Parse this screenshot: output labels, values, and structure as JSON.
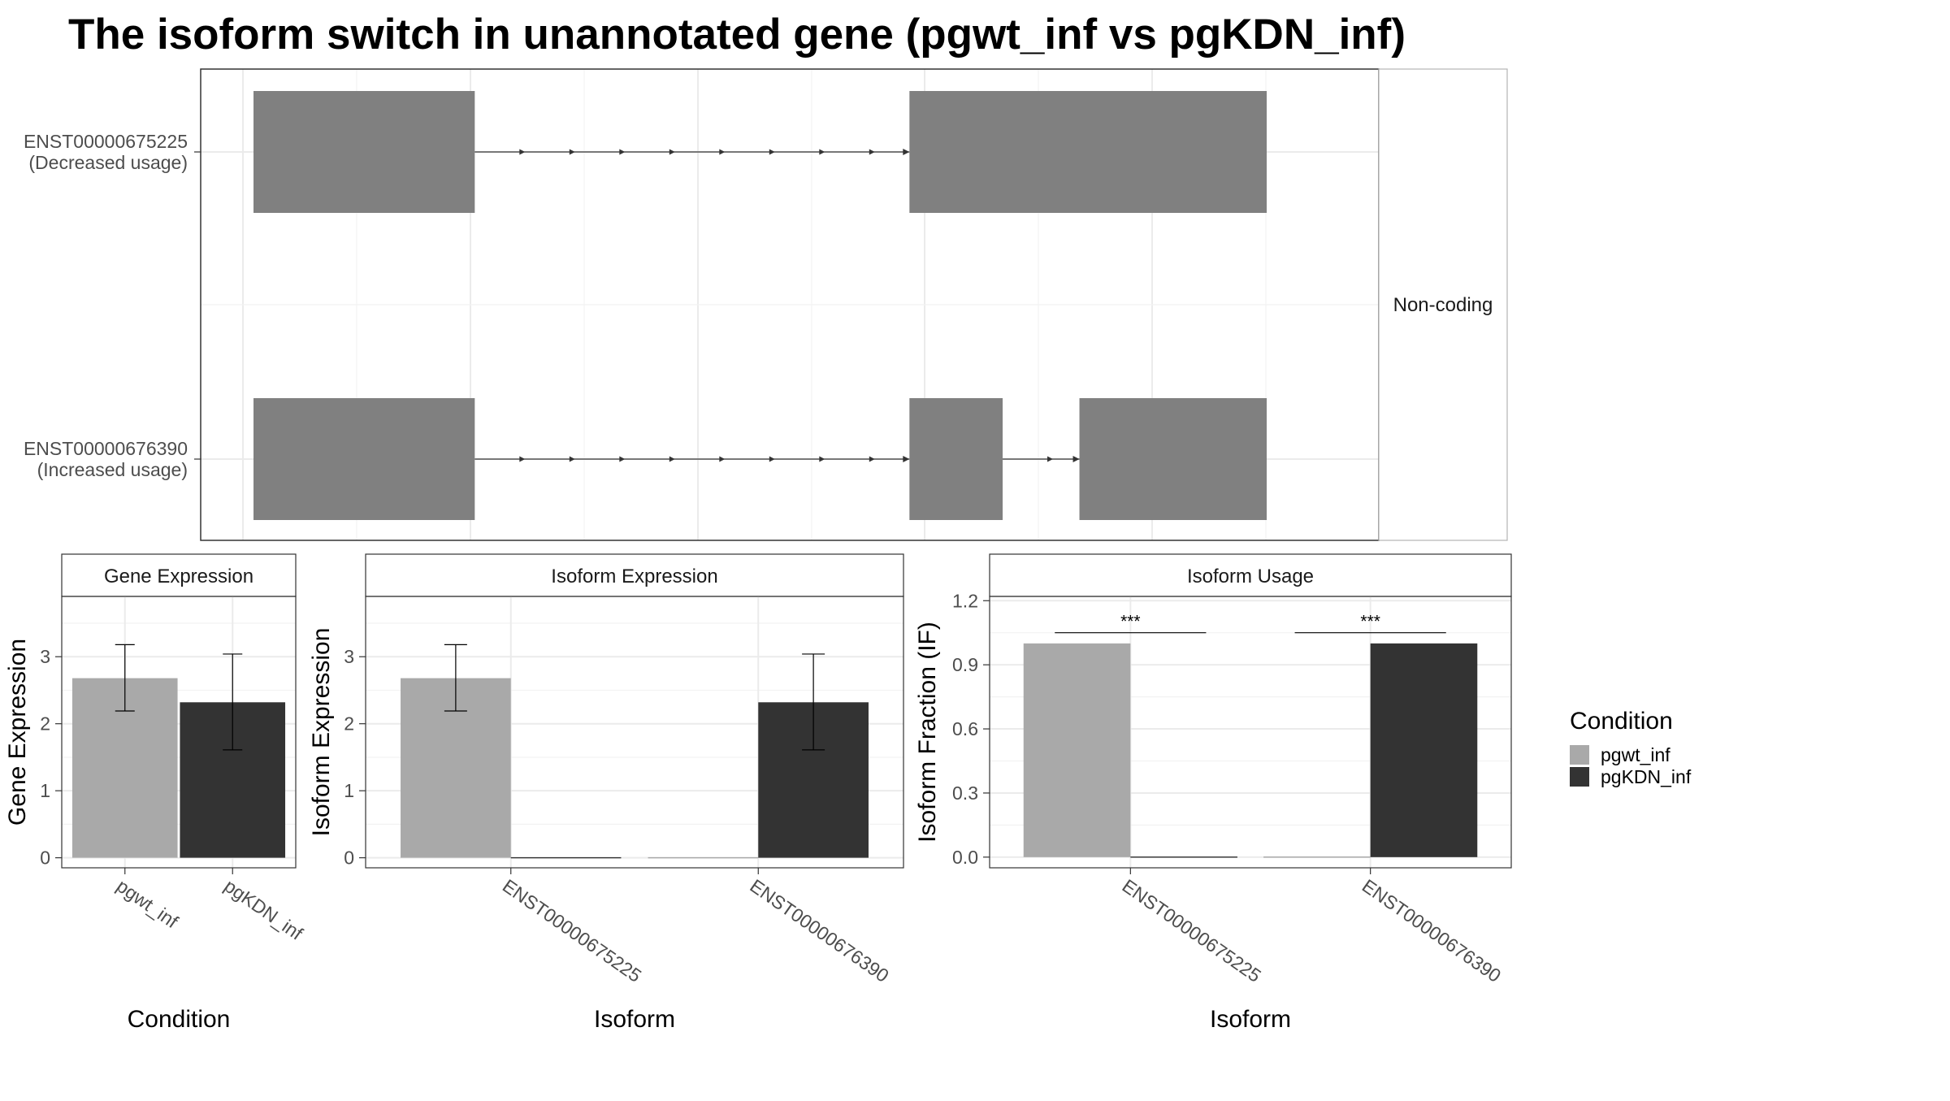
{
  "title": "The isoform switch in unannotated gene (pgwt_inf vs pgKDN_inf)",
  "colors": {
    "pgwt_inf": "#a9a9a9",
    "pgKDN_inf": "#333333",
    "exon": "#808080",
    "grid": "#ebebeb",
    "strip_bg": "#ffffff"
  },
  "chart_data": [
    {
      "type": "transcript-structure",
      "facet_label": "Non-coding",
      "isoforms": [
        {
          "id": "ENST00000675225",
          "label_line1": "ENST00000675225",
          "label_line2": "(Decreased usage)",
          "exons": [
            [
              0.0,
              0.2063
            ],
            [
              0.6116,
              0.9447
            ]
          ]
        },
        {
          "id": "ENST00000676390",
          "label_line1": "ENST00000676390",
          "label_line2": "(Increased usage)",
          "exons": [
            [
              0.0,
              0.2063
            ],
            [
              0.6116,
              0.6985
            ],
            [
              0.7701,
              0.9447
            ]
          ]
        }
      ]
    },
    {
      "type": "bar",
      "title": "Gene Expression",
      "xlabel": "Condition",
      "ylabel": "Gene Expression",
      "categories": [
        "pgwt_inf",
        "pgKDN_inf"
      ],
      "values": [
        2.68,
        2.32
      ],
      "error": [
        [
          2.19,
          3.18
        ],
        [
          1.61,
          3.04
        ]
      ],
      "ylim": [
        -0.15,
        3.9
      ],
      "yticks": [
        0,
        1,
        2,
        3
      ]
    },
    {
      "type": "bar",
      "title": "Isoform Expression",
      "xlabel": "Isoform",
      "ylabel": "Isoform Expression",
      "categories": [
        "ENST00000675225",
        "ENST00000676390"
      ],
      "series": [
        {
          "name": "pgwt_inf",
          "values": [
            2.68,
            0.0
          ],
          "error": [
            [
              2.19,
              3.18
            ],
            null
          ]
        },
        {
          "name": "pgKDN_inf",
          "values": [
            0.0,
            2.32
          ],
          "error": [
            null,
            [
              1.61,
              3.04
            ]
          ]
        }
      ],
      "ylim": [
        -0.15,
        3.9
      ],
      "yticks": [
        0,
        1,
        2,
        3
      ]
    },
    {
      "type": "bar",
      "title": "Isoform Usage",
      "xlabel": "Isoform",
      "ylabel": "Isoform Fraction (IF)",
      "categories": [
        "ENST00000675225",
        "ENST00000676390"
      ],
      "series": [
        {
          "name": "pgwt_inf",
          "values": [
            1.0,
            0.0
          ]
        },
        {
          "name": "pgKDN_inf",
          "values": [
            0.0,
            1.0
          ]
        }
      ],
      "significance": [
        "***",
        "***"
      ],
      "ylim": [
        -0.05,
        1.22
      ],
      "yticks": [
        0.0,
        0.3,
        0.6,
        0.9,
        1.2
      ],
      "ytick_labels": [
        "0.0",
        "0.3",
        "0.6",
        "0.9",
        "1.2"
      ]
    }
  ],
  "legend": {
    "title": "Condition",
    "items": [
      {
        "label": "pgwt_inf",
        "color": "#a9a9a9"
      },
      {
        "label": "pgKDN_inf",
        "color": "#333333"
      }
    ]
  }
}
